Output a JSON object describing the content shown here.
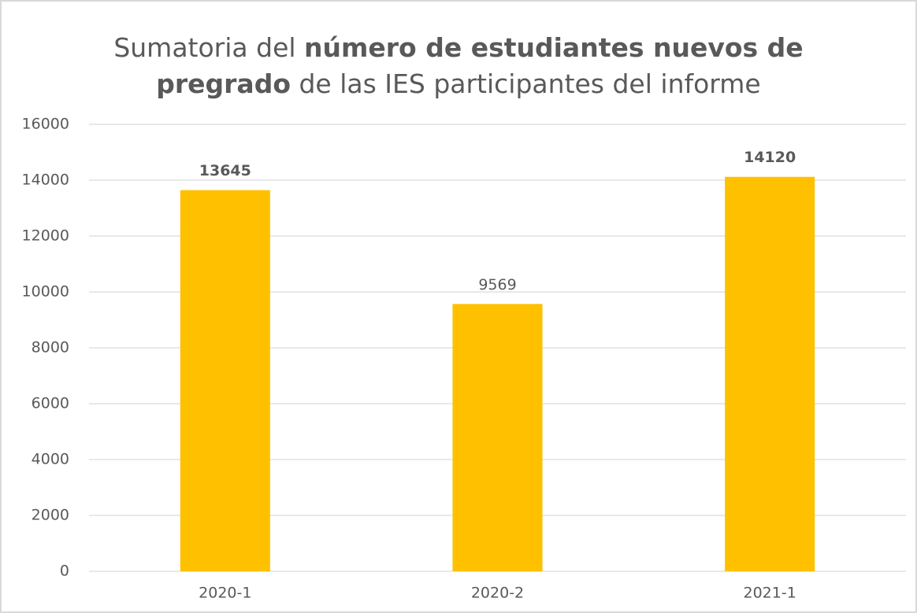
{
  "chart_data": {
    "type": "bar",
    "title": [
      [
        {
          "text": "Sumatoria del ",
          "bold": false
        },
        {
          "text": "número de estudiantes nuevos de",
          "bold": true
        }
      ],
      [
        {
          "text": "pregrado",
          "bold": true
        },
        {
          "text": " de las IES participantes del informe",
          "bold": false
        }
      ]
    ],
    "categories": [
      "2020-1",
      "2020-2",
      "2021-1"
    ],
    "values": [
      13645,
      9569,
      14120
    ],
    "value_labels_bold": [
      true,
      false,
      true
    ],
    "color": "#ffc000",
    "ylim": [
      0,
      16000
    ],
    "yticks": [
      0,
      2000,
      4000,
      6000,
      8000,
      10000,
      12000,
      14000,
      16000
    ],
    "grid": true
  }
}
